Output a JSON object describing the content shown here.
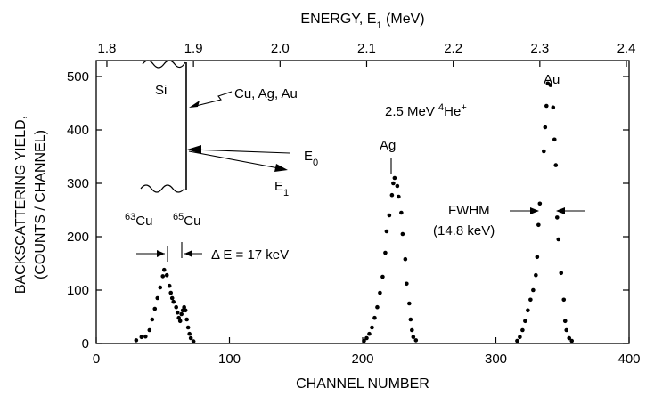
{
  "chart_data": {
    "type": "scatter",
    "xlabel": "CHANNEL NUMBER",
    "ylabel_line1": "BACKSCATTERING YIELD,",
    "ylabel_line2": "(COUNTS / CHANNEL)",
    "top_axis_label": {
      "pre": "ENERGY, E",
      "sub": "1",
      "post": " (MeV)"
    },
    "xlim": [
      0,
      400
    ],
    "ylim": [
      0,
      530
    ],
    "x_ticks": [
      0,
      100,
      200,
      300,
      400
    ],
    "x_tick_labels": [
      "0",
      "100",
      "200",
      "300",
      "400"
    ],
    "y_ticks": [
      0,
      100,
      200,
      300,
      400,
      500
    ],
    "y_tick_labels": [
      "0",
      "100",
      "200",
      "300",
      "400",
      "500"
    ],
    "top_ticks": [
      {
        "energy": 1.8,
        "channel": 8,
        "label": "1.8"
      },
      {
        "energy": 1.9,
        "channel": 73,
        "label": "1.9"
      },
      {
        "energy": 2.0,
        "channel": 138,
        "label": "2.0"
      },
      {
        "energy": 2.1,
        "channel": 203,
        "label": "2.1"
      },
      {
        "energy": 2.2,
        "channel": 268,
        "label": "2.2"
      },
      {
        "energy": 2.3,
        "channel": 333,
        "label": "2.3"
      },
      {
        "energy": 2.4,
        "channel": 398,
        "label": "2.4"
      }
    ],
    "series": [
      {
        "name": "Cu",
        "points": [
          [
            30,
            6
          ],
          [
            34,
            12
          ],
          [
            37,
            13
          ],
          [
            40,
            25
          ],
          [
            42,
            45
          ],
          [
            44,
            65
          ],
          [
            46,
            85
          ],
          [
            48,
            105
          ],
          [
            50,
            126
          ],
          [
            51,
            138
          ],
          [
            53,
            128
          ],
          [
            55,
            108
          ],
          [
            56,
            95
          ],
          [
            57,
            85
          ],
          [
            58,
            78
          ],
          [
            60,
            68
          ],
          [
            61,
            58
          ],
          [
            62,
            48
          ],
          [
            63,
            42
          ],
          [
            64,
            55
          ],
          [
            65,
            62
          ],
          [
            66,
            68
          ],
          [
            67,
            62
          ],
          [
            68,
            45
          ],
          [
            69,
            30
          ],
          [
            70,
            18
          ],
          [
            71,
            10
          ],
          [
            73,
            4
          ]
        ]
      },
      {
        "name": "Ag",
        "points": [
          [
            201,
            5
          ],
          [
            203,
            10
          ],
          [
            205,
            18
          ],
          [
            207,
            30
          ],
          [
            209,
            48
          ],
          [
            211,
            68
          ],
          [
            213,
            95
          ],
          [
            215,
            125
          ],
          [
            217,
            170
          ],
          [
            218,
            210
          ],
          [
            220,
            240
          ],
          [
            222,
            278
          ],
          [
            223,
            300
          ],
          [
            224,
            310
          ],
          [
            226,
            295
          ],
          [
            227,
            275
          ],
          [
            229,
            245
          ],
          [
            230,
            205
          ],
          [
            232,
            158
          ],
          [
            233,
            112
          ],
          [
            235,
            75
          ],
          [
            236,
            45
          ],
          [
            237,
            25
          ],
          [
            238,
            12
          ],
          [
            240,
            6
          ]
        ]
      },
      {
        "name": "Au",
        "points": [
          [
            316,
            5
          ],
          [
            318,
            12
          ],
          [
            320,
            25
          ],
          [
            322,
            42
          ],
          [
            324,
            62
          ],
          [
            326,
            82
          ],
          [
            328,
            100
          ],
          [
            330,
            128
          ],
          [
            331,
            162
          ],
          [
            332,
            222
          ],
          [
            333,
            262
          ],
          [
            336,
            360
          ],
          [
            337,
            405
          ],
          [
            338,
            445
          ],
          [
            339,
            487
          ],
          [
            341,
            484
          ],
          [
            343,
            442
          ],
          [
            344,
            382
          ],
          [
            345,
            334
          ],
          [
            346,
            236
          ],
          [
            347,
            195
          ],
          [
            349,
            132
          ],
          [
            351,
            82
          ],
          [
            352,
            42
          ],
          [
            353,
            25
          ],
          [
            355,
            10
          ],
          [
            357,
            5
          ]
        ]
      }
    ]
  },
  "annotations": {
    "beam": {
      "pre": "2.5 MeV ",
      "sup1": "4",
      "mid": "He",
      "sup2": "+"
    },
    "peak_labels": {
      "au": "Au",
      "ag": "Ag"
    },
    "inset": {
      "si": "Si",
      "elements": "Cu, Ag, Au",
      "e0_main": "E",
      "e0_sub": "0",
      "e1_main": "E",
      "e1_sub": "1"
    },
    "isotopes": {
      "cu63_mass": "63",
      "cu63_sym": "Cu",
      "cu65_mass": "65",
      "cu65_sym": "Cu"
    },
    "delta_e": "Δ E = 17 keV",
    "fwhm": {
      "label": "FWHM",
      "value": "(14.8 keV)"
    }
  }
}
